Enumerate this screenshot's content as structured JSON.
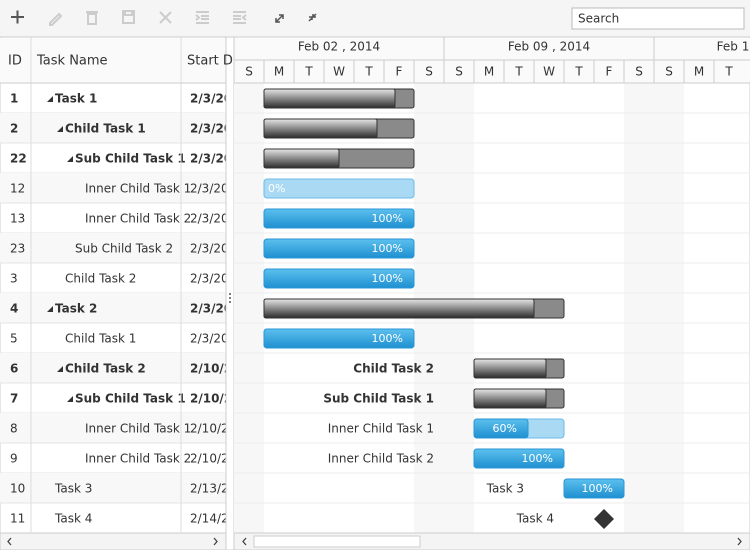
{
  "toolbar": {
    "search_placeholder": "Search"
  },
  "grid": {
    "columns": [
      "ID",
      "Task Name",
      "Start D"
    ]
  },
  "timeline": {
    "weeks": [
      "Feb 02 , 2014",
      "Feb 09 , 2014",
      "Feb 1"
    ],
    "days": [
      "S",
      "M",
      "T",
      "W",
      "T",
      "F",
      "S",
      "S",
      "M",
      "T",
      "W",
      "T",
      "F",
      "S",
      "S",
      "M",
      "T"
    ]
  },
  "tasks": [
    {
      "id": "1",
      "name": "Task 1",
      "start": "2/3/20"
    },
    {
      "id": "2",
      "name": "Child Task 1",
      "start": "2/3/20"
    },
    {
      "id": "22",
      "name": "Sub Child Task 1",
      "start": "2/3/20"
    },
    {
      "id": "12",
      "name": "Inner Child Task 1",
      "start": "2/3/20",
      "progress": "0%"
    },
    {
      "id": "13",
      "name": "Inner Child Task 2",
      "start": "2/3/20",
      "progress": "100%"
    },
    {
      "id": "23",
      "name": "Sub Child Task 2",
      "start": "2/3/20",
      "progress": "100%"
    },
    {
      "id": "3",
      "name": "Child Task 2",
      "start": "2/3/20",
      "progress": "100%"
    },
    {
      "id": "4",
      "name": "Task 2",
      "start": "2/3/20"
    },
    {
      "id": "5",
      "name": "Child Task 1",
      "start": "2/3/20",
      "progress": "100%"
    },
    {
      "id": "6",
      "name": "Child Task 2",
      "start": "2/10/2"
    },
    {
      "id": "7",
      "name": "Sub Child Task 1",
      "start": "2/10/2"
    },
    {
      "id": "8",
      "name": "Inner Child Task 1",
      "start": "2/10/2",
      "progress": "60%"
    },
    {
      "id": "9",
      "name": "Inner Child Task 2",
      "start": "2/10/2",
      "progress": "100%"
    },
    {
      "id": "10",
      "name": "Task 3",
      "start": "2/13/2",
      "progress": "100%"
    },
    {
      "id": "11",
      "name": "Task 4",
      "start": "2/14/2"
    }
  ]
}
